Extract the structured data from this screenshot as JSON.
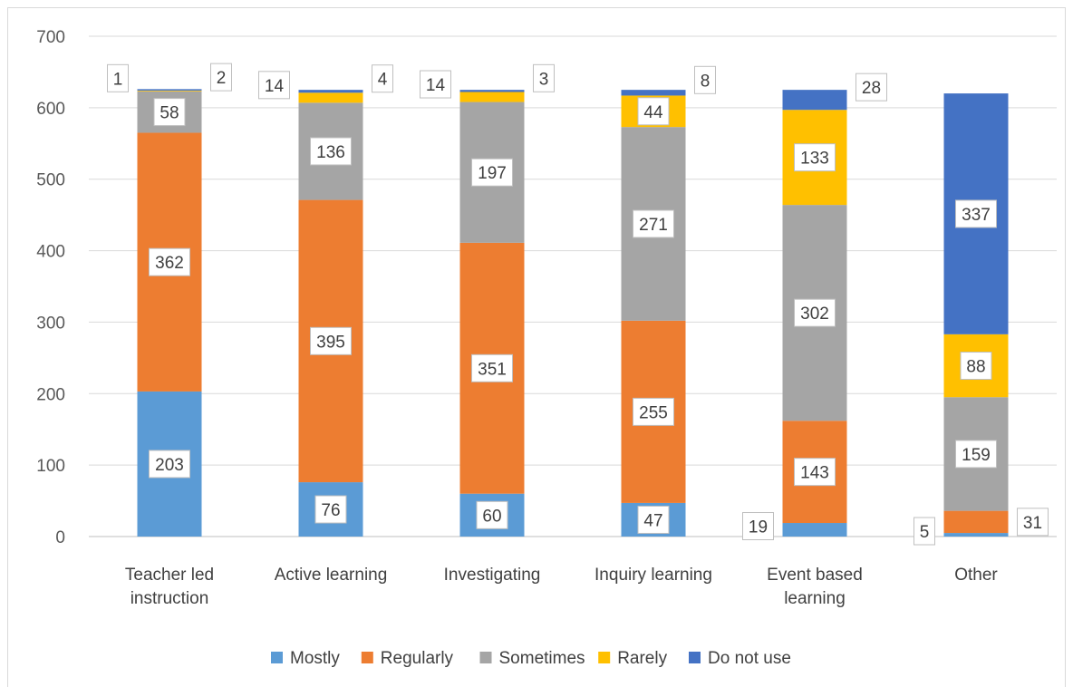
{
  "chart_data": {
    "type": "bar",
    "stacked": true,
    "categories": [
      [
        "Teacher led",
        "instruction"
      ],
      [
        "Active learning"
      ],
      [
        "Investigating"
      ],
      [
        "Inquiry learning"
      ],
      [
        "Event based",
        "learning"
      ],
      [
        "Other"
      ]
    ],
    "series": [
      {
        "name": "Mostly",
        "color": "#5B9BD5",
        "values": [
          203,
          76,
          60,
          47,
          19,
          5
        ]
      },
      {
        "name": "Regularly",
        "color": "#ED7D31",
        "values": [
          362,
          395,
          351,
          255,
          143,
          31
        ]
      },
      {
        "name": "Sometimes",
        "color": "#A5A5A5",
        "values": [
          58,
          136,
          197,
          271,
          302,
          159
        ]
      },
      {
        "name": "Rarely",
        "color": "#FFC000",
        "values": [
          1,
          14,
          14,
          44,
          133,
          88
        ]
      },
      {
        "name": "Do not use",
        "color": "#4472C4",
        "values": [
          2,
          4,
          3,
          8,
          28,
          337
        ]
      }
    ],
    "ylim": [
      0,
      700
    ],
    "yticks": [
      0,
      100,
      200,
      300,
      400,
      500,
      600,
      700
    ],
    "grid": true,
    "legend": "bottom",
    "title": "",
    "xlabel": "",
    "ylabel": ""
  }
}
